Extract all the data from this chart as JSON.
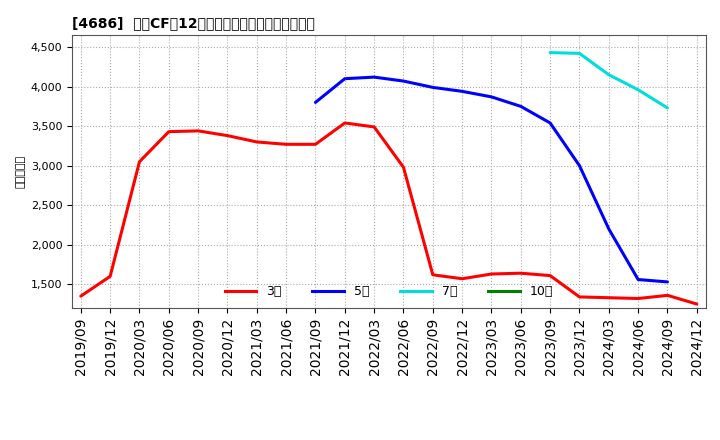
{
  "title": "[4686]  営業CFの12か月移動合計の標準偏差の推移",
  "ylabel": "（百万円）",
  "ylim": [
    1200,
    4650
  ],
  "yticks": [
    1500,
    2000,
    2500,
    3000,
    3500,
    4000,
    4500
  ],
  "background_color": "#ffffff",
  "plot_bg_color": "#ffffff",
  "grid_color": "#aaaaaa",
  "series": {
    "3year": {
      "color": "#ff0000",
      "label": "3年",
      "x": [
        "2019/09",
        "2019/12",
        "2020/03",
        "2020/06",
        "2020/09",
        "2020/12",
        "2021/03",
        "2021/06",
        "2021/09",
        "2021/12",
        "2022/03",
        "2022/06",
        "2022/09",
        "2022/12",
        "2023/03",
        "2023/06",
        "2023/09",
        "2023/12",
        "2024/03",
        "2024/06",
        "2024/09",
        "2024/12"
      ],
      "y": [
        1350,
        1600,
        3050,
        3430,
        3440,
        3380,
        3300,
        3270,
        3270,
        3540,
        3490,
        2980,
        1620,
        1570,
        1630,
        1640,
        1610,
        1340,
        1330,
        1320,
        1360,
        1250
      ]
    },
    "5year": {
      "color": "#0000ff",
      "label": "5年",
      "x": [
        "2021/09",
        "2021/12",
        "2022/03",
        "2022/06",
        "2022/09",
        "2022/12",
        "2023/03",
        "2023/06",
        "2023/09",
        "2023/12",
        "2024/03",
        "2024/06",
        "2024/09"
      ],
      "y": [
        3800,
        4100,
        4120,
        4070,
        3990,
        3940,
        3870,
        3750,
        3540,
        3000,
        2200,
        1560,
        1530
      ]
    },
    "7year": {
      "color": "#00dddd",
      "label": "7年",
      "x": [
        "2023/09",
        "2023/12",
        "2024/03",
        "2024/06",
        "2024/09"
      ],
      "y": [
        4430,
        4420,
        4150,
        3960,
        3730
      ]
    },
    "10year": {
      "color": "#008000",
      "label": "10年",
      "x": [],
      "y": []
    }
  },
  "xtick_labels": [
    "2019/09",
    "2019/12",
    "2020/03",
    "2020/06",
    "2020/09",
    "2020/12",
    "2021/03",
    "2021/06",
    "2021/09",
    "2021/12",
    "2022/03",
    "2022/06",
    "2022/09",
    "2022/12",
    "2023/03",
    "2023/06",
    "2023/09",
    "2023/12",
    "2024/03",
    "2024/06",
    "2024/09",
    "2024/12"
  ],
  "legend_labels": [
    "3年",
    "5年",
    "7年",
    "10年"
  ],
  "legend_colors": [
    "#ff0000",
    "#0000ff",
    "#00dddd",
    "#008000"
  ]
}
